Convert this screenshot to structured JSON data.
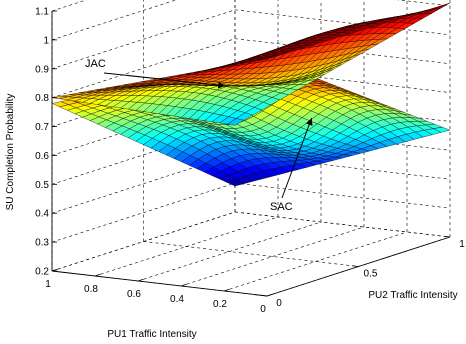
{
  "chart_data": {
    "type": "surface",
    "title": "",
    "xlabel": "PU1 Traffic Intensity",
    "ylabel": "PU2 Traffic Intensity",
    "zlabel": "SU Completion Probability",
    "xlim": [
      0,
      1
    ],
    "ylim": [
      0,
      1
    ],
    "zlim": [
      0.2,
      1.1
    ],
    "x_ticks": [
      "0",
      "0.2",
      "0.4",
      "0.6",
      "0.8",
      "1"
    ],
    "x_tick_values": [
      0,
      0.2,
      0.4,
      0.6,
      0.8,
      1
    ],
    "y_ticks": [
      "0",
      "0.5",
      "1"
    ],
    "y_tick_values": [
      0,
      0.5,
      1
    ],
    "z_ticks": [
      "0.2",
      "0.3",
      "0.4",
      "0.5",
      "0.6",
      "0.7",
      "0.8",
      "0.9",
      "1",
      "1.1"
    ],
    "z_tick_values": [
      0.2,
      0.3,
      0.4,
      0.5,
      0.6,
      0.7,
      0.8,
      0.9,
      1.0,
      1.1
    ],
    "grid": true,
    "colormap": [
      "#00008f",
      "#0000ff",
      "#00ffff",
      "#ffff00",
      "#ff0000",
      "#800000"
    ],
    "series": [
      {
        "name": "JAC",
        "corners": {
          "x0_y0": 1.02,
          "x0_y1": 1.01,
          "x1_y0": 0.8,
          "x1_y1": 0.5
        }
      },
      {
        "name": "SAC",
        "corners": {
          "x0_y0": 1.02,
          "x0_y1": 0.57,
          "x1_y0": 0.78,
          "x1_y1": 0.29
        }
      }
    ],
    "annotations": [
      {
        "text": "JAC",
        "series": "JAC"
      },
      {
        "text": "SAC",
        "series": "SAC"
      }
    ]
  }
}
